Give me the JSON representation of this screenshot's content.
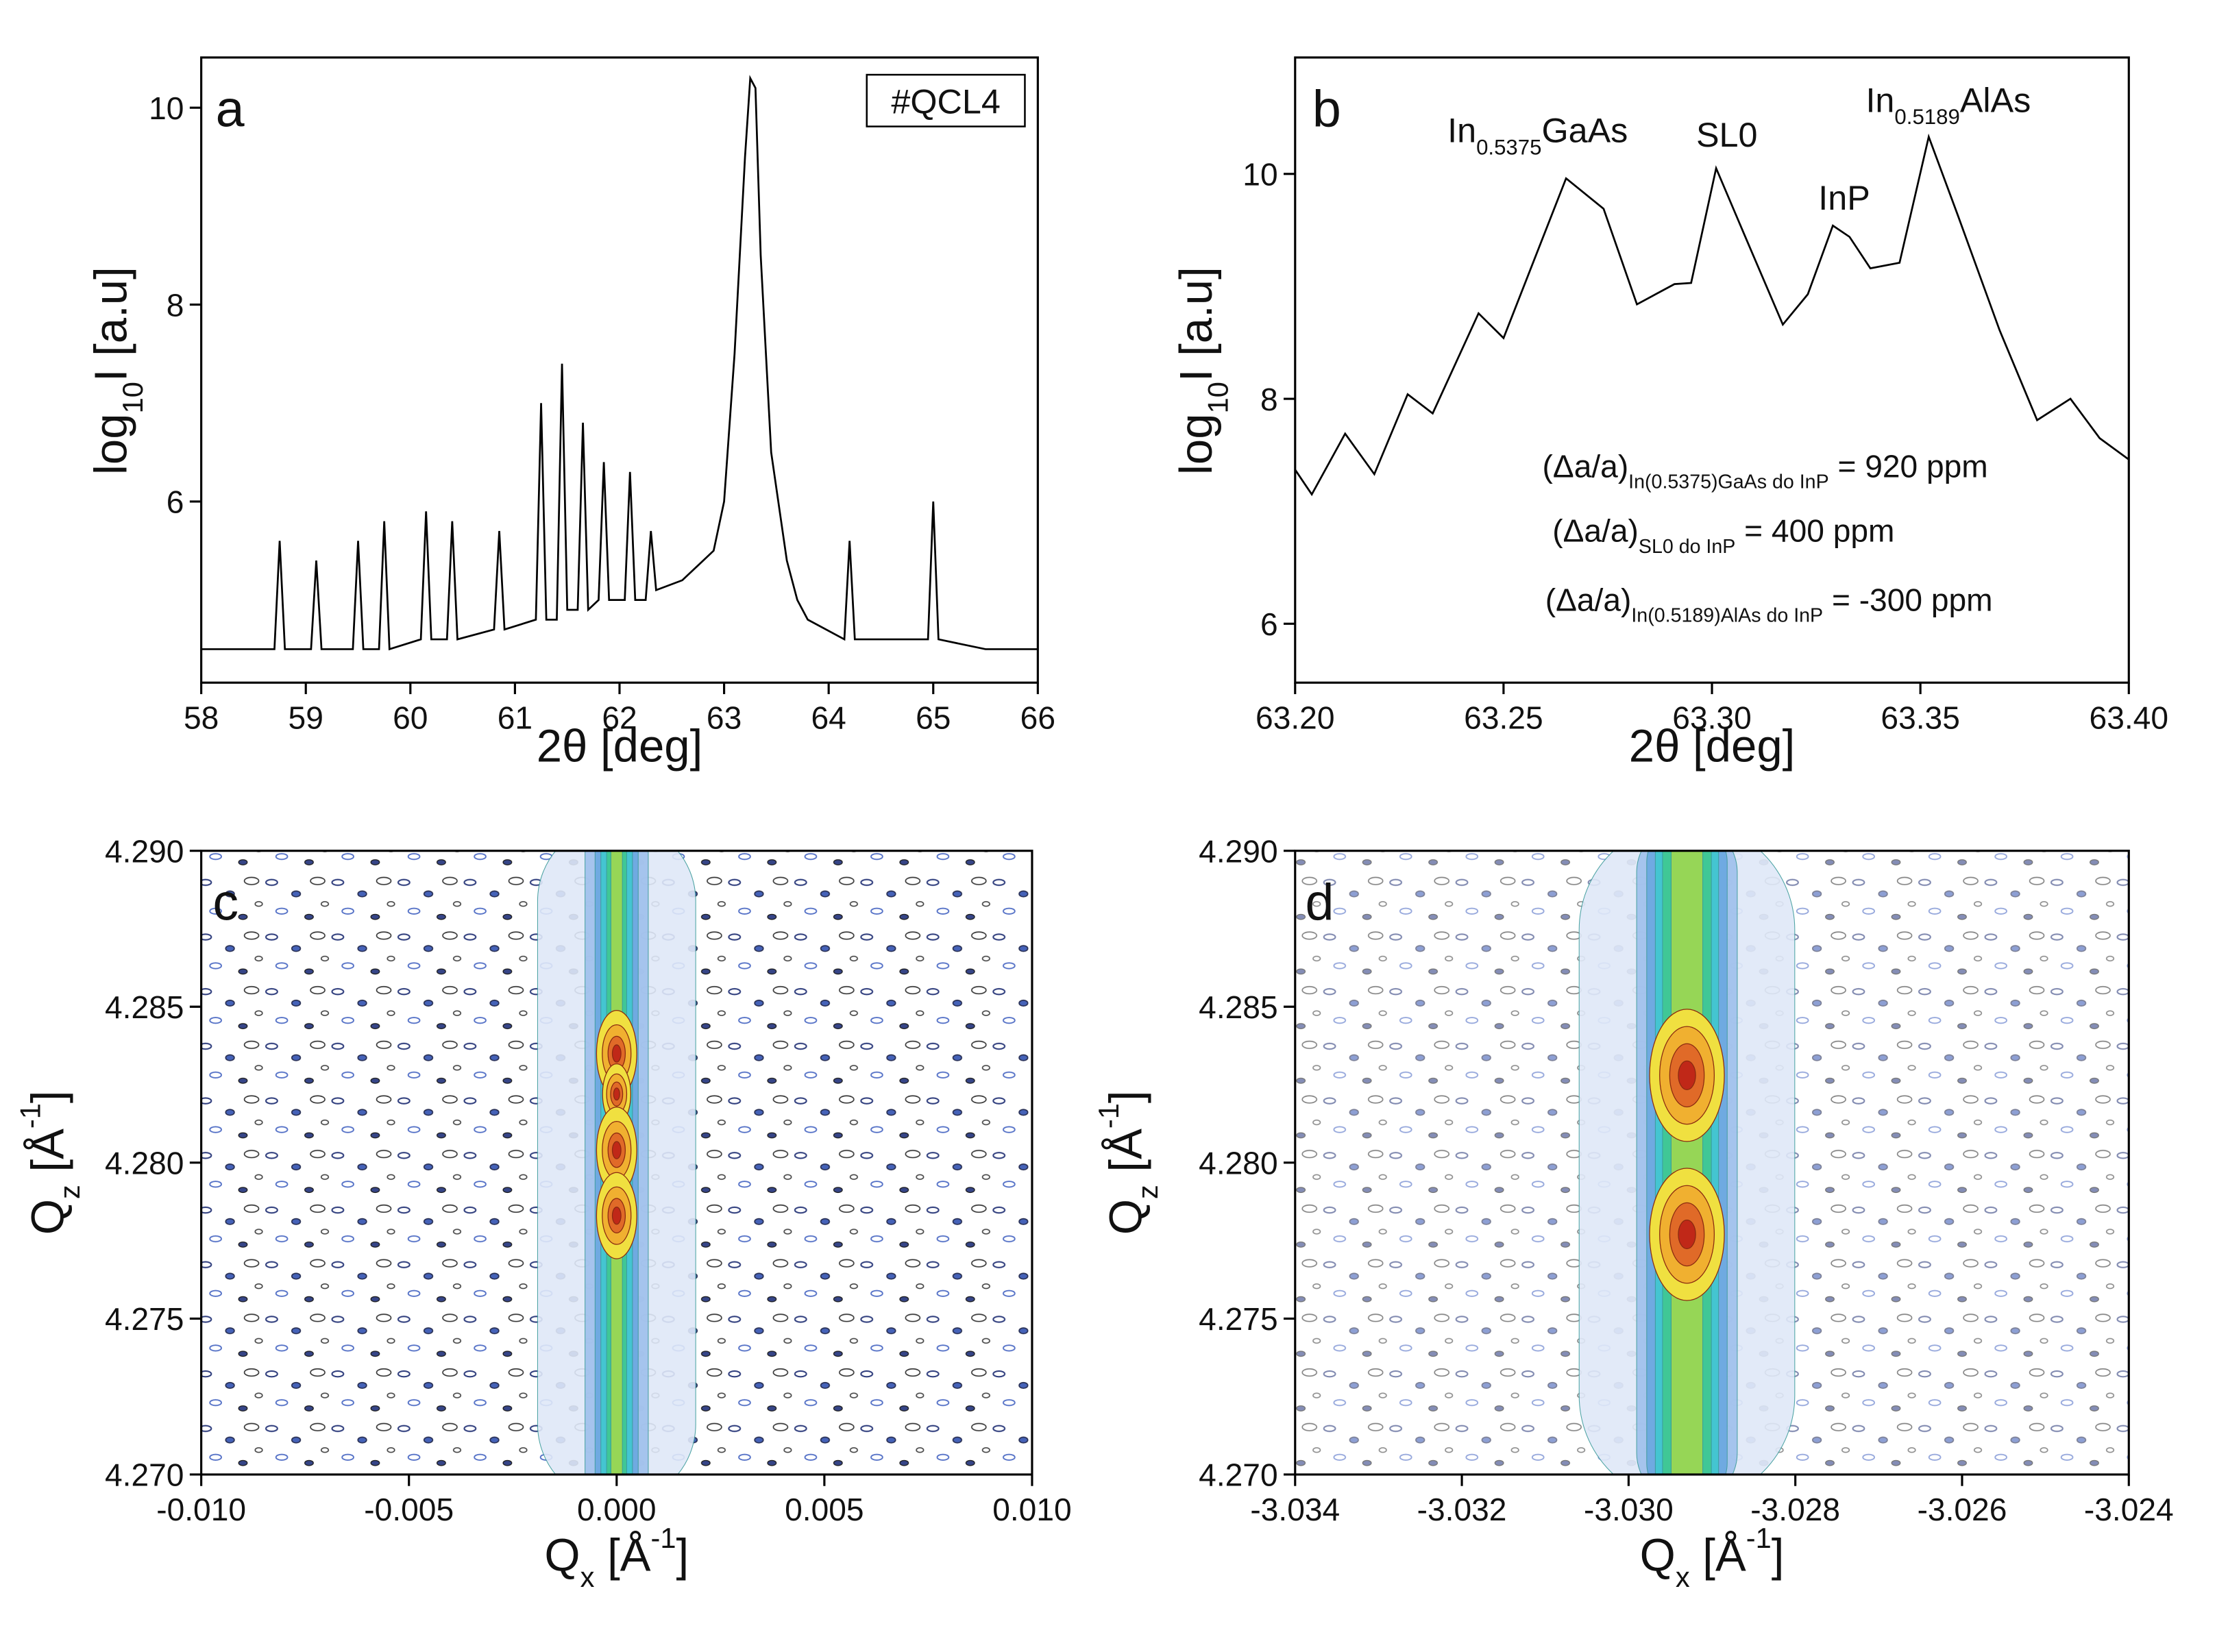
{
  "chart_data": [
    {
      "type": "line",
      "panel_label": "a",
      "tag": "#QCL4",
      "xlabel": "2θ [deg]",
      "ylabel": [
        "log",
        {
          "t": "10",
          "pos": "sub"
        },
        "I [a.u]"
      ],
      "xlim": [
        58,
        66
      ],
      "ylim": [
        4.16,
        10.51
      ],
      "xticks": [
        58,
        59,
        60,
        61,
        62,
        63,
        64,
        65,
        66
      ],
      "yticks": [
        6,
        8,
        10
      ],
      "color": "#000000",
      "x": [
        58,
        58.7,
        58.75,
        58.8,
        59.05,
        59.1,
        59.15,
        59.45,
        59.5,
        59.55,
        59.7,
        59.75,
        59.8,
        60.1,
        60.15,
        60.2,
        60.35,
        60.4,
        60.45,
        60.8,
        60.85,
        60.9,
        61.2,
        61.25,
        61.3,
        61.4,
        61.45,
        61.5,
        61.6,
        61.65,
        61.7,
        61.8,
        61.85,
        61.9,
        62.05,
        62.1,
        62.15,
        62.25,
        62.3,
        62.35,
        62.6,
        62.9,
        63.0,
        63.1,
        63.2,
        63.25,
        63.3,
        63.35,
        63.45,
        63.6,
        63.7,
        63.8,
        64.15,
        64.2,
        64.25,
        64.95,
        65.0,
        65.05,
        65.5,
        66
      ],
      "y": [
        4.5,
        4.5,
        5.6,
        4.5,
        4.5,
        5.4,
        4.5,
        4.5,
        5.6,
        4.5,
        4.5,
        5.8,
        4.5,
        4.6,
        5.9,
        4.6,
        4.6,
        5.8,
        4.6,
        4.7,
        5.7,
        4.7,
        4.8,
        7.0,
        4.8,
        4.8,
        7.4,
        4.9,
        4.9,
        6.8,
        4.9,
        5.0,
        6.4,
        5.0,
        5.0,
        6.3,
        5.0,
        5.0,
        5.7,
        5.1,
        5.2,
        5.5,
        6.0,
        7.5,
        9.5,
        10.3,
        10.2,
        8.5,
        6.5,
        5.4,
        5.0,
        4.8,
        4.6,
        5.6,
        4.6,
        4.6,
        6.0,
        4.6,
        4.5,
        4.5
      ]
    },
    {
      "type": "line",
      "panel_label": "b",
      "xlabel": "2θ [deg]",
      "ylabel": [
        "log",
        {
          "t": "10",
          "pos": "sub"
        },
        "I [a.u]"
      ],
      "xlim": [
        63.2,
        63.4
      ],
      "ylim": [
        5.476,
        11.035
      ],
      "xticks": [
        {
          "value": 63.2,
          "label": "63.20"
        },
        {
          "value": 63.25,
          "label": "63.25"
        },
        {
          "value": 63.3,
          "label": "63.30"
        },
        {
          "value": 63.35,
          "label": "63.35"
        },
        {
          "value": 63.4,
          "label": "63.40"
        }
      ],
      "yticks": [
        6,
        8,
        10
      ],
      "color": "#000000",
      "x": [
        63.2,
        63.204,
        63.212,
        63.219,
        63.227,
        63.233,
        63.244,
        63.25,
        63.265,
        63.274,
        63.282,
        63.291,
        63.295,
        63.301,
        63.308,
        63.317,
        63.323,
        63.329,
        63.333,
        63.338,
        63.345,
        63.352,
        63.359,
        63.369,
        63.378,
        63.386,
        63.393,
        63.4
      ],
      "y": [
        7.37,
        7.15,
        7.69,
        7.33,
        8.04,
        7.87,
        8.76,
        8.54,
        9.96,
        9.69,
        8.84,
        9.02,
        9.03,
        10.05,
        9.44,
        8.66,
        8.93,
        9.54,
        9.44,
        9.16,
        9.21,
        10.33,
        9.63,
        8.61,
        7.81,
        8.0,
        7.65,
        7.46
      ],
      "annotations": [
        [
          "In",
          {
            "t": "0.5375",
            "pos": "sub"
          },
          "GaAs"
        ],
        [
          "SL0"
        ],
        [
          "InP"
        ],
        [
          "In",
          {
            "t": "0.5189",
            "pos": "sub"
          },
          "AlAs"
        ]
      ],
      "notes": [
        [
          "(Δa/a)",
          {
            "t": "In(0.5375)GaAs do InP",
            "pos": "sub"
          },
          " = 920 ppm"
        ],
        [
          "(Δa/a)",
          {
            "t": "SL0 do InP",
            "pos": "sub"
          },
          " = 400 ppm"
        ],
        [
          "(Δa/a)",
          {
            "t": "In(0.5189)AlAs do InP",
            "pos": "sub"
          },
          " = -300 ppm"
        ]
      ]
    },
    {
      "type": "contour",
      "panel_label": "c",
      "xlabel": [
        "Q",
        {
          "t": "x",
          "pos": "sub"
        },
        " [Å",
        {
          "t": "-1",
          "pos": "sup"
        },
        "]"
      ],
      "ylabel": [
        "Q",
        {
          "t": "z",
          "pos": "sub"
        },
        " [Å",
        {
          "t": "-1",
          "pos": "sup"
        },
        "]"
      ],
      "xlim": [
        -0.01,
        0.01
      ],
      "ylim": [
        4.27,
        4.29
      ],
      "xticks": [
        {
          "value": -0.01,
          "label": "-0.010"
        },
        {
          "value": -0.005,
          "label": "-0.005"
        },
        {
          "value": 0,
          "label": "0.000"
        },
        {
          "value": 0.005,
          "label": "0.005"
        },
        {
          "value": 0.01,
          "label": "0.010"
        }
      ],
      "yticks": [
        {
          "value": 4.27,
          "label": "4.270"
        },
        {
          "value": 4.275,
          "label": "4.275"
        },
        {
          "value": 4.28,
          "label": "4.280"
        },
        {
          "value": 4.285,
          "label": "4.285"
        },
        {
          "value": 4.29,
          "label": "4.290"
        }
      ],
      "ridge_qx": 0.0,
      "peaks": [
        {
          "qx": 0.0,
          "qz": 4.2835
        },
        {
          "qx": 0.0,
          "qz": 4.2822
        },
        {
          "qx": 0.0,
          "qz": 4.2804
        },
        {
          "qx": 0.0,
          "qz": 4.2783
        }
      ]
    },
    {
      "type": "contour",
      "panel_label": "d",
      "xlabel": [
        "Q",
        {
          "t": "x",
          "pos": "sub"
        },
        " [Å",
        {
          "t": "-1",
          "pos": "sup"
        },
        "]"
      ],
      "ylabel": [
        "Q",
        {
          "t": "z",
          "pos": "sub"
        },
        " [Å",
        {
          "t": "-1",
          "pos": "sup"
        },
        "]"
      ],
      "xlim": [
        -3.034,
        -3.024
      ],
      "ylim": [
        4.27,
        4.29
      ],
      "xticks": [
        {
          "value": -3.034,
          "label": "-3.034"
        },
        {
          "value": -3.032,
          "label": "-3.032"
        },
        {
          "value": -3.03,
          "label": "-3.030"
        },
        {
          "value": -3.028,
          "label": "-3.028"
        },
        {
          "value": -3.026,
          "label": "-3.026"
        },
        {
          "value": -3.024,
          "label": "-3.024"
        }
      ],
      "yticks": [
        {
          "value": 4.27,
          "label": "4.270"
        },
        {
          "value": 4.275,
          "label": "4.275"
        },
        {
          "value": 4.28,
          "label": "4.280"
        },
        {
          "value": 4.285,
          "label": "4.285"
        },
        {
          "value": 4.29,
          "label": "4.290"
        }
      ],
      "ridge_qx": -3.0293,
      "peaks": [
        {
          "qx": -3.0293,
          "qz": 4.2828
        },
        {
          "qx": -3.0293,
          "qz": 4.2777
        }
      ]
    }
  ]
}
